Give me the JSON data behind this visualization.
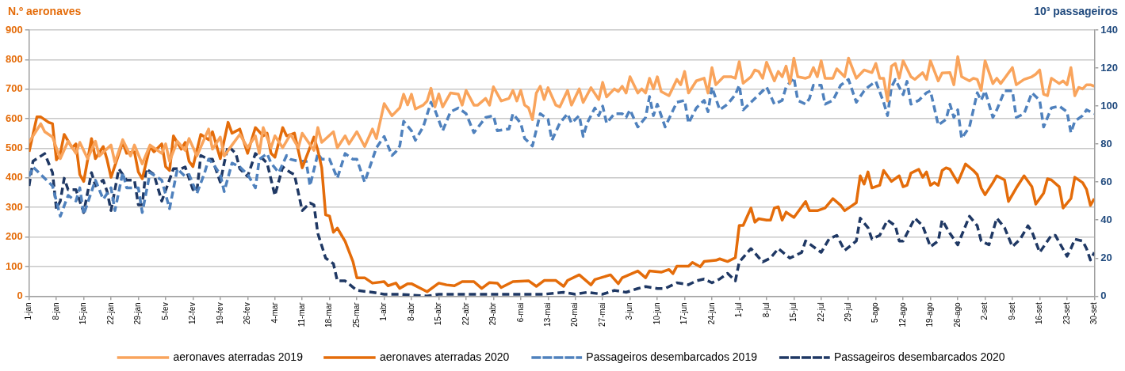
{
  "chart_data": {
    "type": "line",
    "ylabel": "N.º aeronaves",
    "y2label": "10³ passageiros",
    "xlim": [
      "--01-01",
      "--09-30"
    ],
    "xticks": [
      {
        "value": "--01-01",
        "label": "1-jan"
      },
      {
        "value": "--01-08",
        "label": "8-jan"
      },
      {
        "value": "--01-15",
        "label": "15-jan"
      },
      {
        "value": "--01-22",
        "label": "22-jan"
      },
      {
        "value": "--01-29",
        "label": "29-jan"
      },
      {
        "value": "--02-05",
        "label": "5-fev"
      },
      {
        "value": "--02-12",
        "label": "12-fev"
      },
      {
        "value": "--02-19",
        "label": "19-fev"
      },
      {
        "value": "--02-26",
        "label": "26-fev"
      },
      {
        "value": "--03-04",
        "label": "4-mar"
      },
      {
        "value": "--03-11",
        "label": "11-mar"
      },
      {
        "value": "--03-18",
        "label": "18-mar"
      },
      {
        "value": "--03-25",
        "label": "25-mar"
      },
      {
        "value": "--04-01",
        "label": "1-abr"
      },
      {
        "value": "--04-08",
        "label": "8-abr"
      },
      {
        "value": "--04-15",
        "label": "15-abr"
      },
      {
        "value": "--04-22",
        "label": "22-abr"
      },
      {
        "value": "--04-29",
        "label": "29-abr"
      },
      {
        "value": "--05-06",
        "label": "6-mai"
      },
      {
        "value": "--05-13",
        "label": "13-mai"
      },
      {
        "value": "--05-20",
        "label": "20-mai"
      },
      {
        "value": "--05-27",
        "label": "27-mai"
      },
      {
        "value": "--06-03",
        "label": "3-jun"
      },
      {
        "value": "--06-10",
        "label": "10-jun"
      },
      {
        "value": "--06-17",
        "label": "17-jun"
      },
      {
        "value": "--06-24",
        "label": "24-jun"
      },
      {
        "value": "--07-01",
        "label": "1-jul"
      },
      {
        "value": "--07-08",
        "label": "8-jul"
      },
      {
        "value": "--07-15",
        "label": "15-jul"
      },
      {
        "value": "--07-22",
        "label": "22-jul"
      },
      {
        "value": "--07-29",
        "label": "29-jul"
      },
      {
        "value": "--08-05",
        "label": "5-ago"
      },
      {
        "value": "--08-12",
        "label": "12-ago"
      },
      {
        "value": "--08-19",
        "label": "19-ago"
      },
      {
        "value": "--08-26",
        "label": "26-ago"
      },
      {
        "value": "--09-02",
        "label": "2-set"
      },
      {
        "value": "--09-09",
        "label": "9-set"
      },
      {
        "value": "--09-16",
        "label": "16-set"
      },
      {
        "value": "--09-23",
        "label": "23-set"
      },
      {
        "value": "--09-30",
        "label": "30-set"
      }
    ],
    "ylim": [
      0,
      900
    ],
    "yticks": [
      0,
      100,
      200,
      300,
      400,
      500,
      600,
      700,
      800,
      900
    ],
    "y2lim": [
      0,
      140
    ],
    "y2ticks": [
      0,
      20,
      40,
      60,
      80,
      100,
      120,
      140
    ],
    "grid": "y",
    "legend": "bottom",
    "marker": "none",
    "series": [
      {
        "name": "aeronaves aterradas 2019",
        "color": "#f9a45c",
        "line_style": "solid",
        "x": [
          "--01-01",
          "--01-04",
          "--01-05",
          "--01-07",
          "--01-09",
          "--01-11",
          "--01-13",
          "--01-14",
          "--01-16",
          "--01-18",
          "--01-19",
          "--01-22",
          "--01-23",
          "--01-25",
          "--01-27",
          "--01-28",
          "--01-30",
          "--02-01",
          "--02-04",
          "--02-05",
          "--02-06",
          "--02-08",
          "--02-10",
          "--02-11",
          "--02-13",
          "--02-16",
          "--02-17",
          "--02-19",
          "--02-20",
          "--02-22",
          "--02-24",
          "--02-26",
          "--02-28",
          "--02-29",
          "--03-01",
          "--03-03",
          "--03-04",
          "--03-06",
          "--03-08",
          "--03-10",
          "--03-11",
          "--03-14",
          "--03-15",
          "--03-16",
          "--03-19",
          "--03-20",
          "--03-22",
          "--03-23",
          "--03-25",
          "--03-27",
          "--03-29",
          "--03-30",
          "--04-01",
          "--04-03",
          "--04-05",
          "--04-06",
          "--04-07",
          "--04-08",
          "--04-09",
          "--04-11",
          "--04-12",
          "--04-13",
          "--04-14",
          "--04-15",
          "--04-16",
          "--04-18",
          "--04-20",
          "--04-21",
          "--04-22",
          "--04-24",
          "--04-25",
          "--04-27",
          "--04-28",
          "--04-29",
          "--05-01",
          "--05-03",
          "--05-04",
          "--05-05",
          "--05-06",
          "--05-07",
          "--05-08",
          "--05-09",
          "--05-10",
          "--05-11",
          "--05-12",
          "--05-13",
          "--05-15",
          "--05-16",
          "--05-18",
          "--05-19",
          "--05-21",
          "--05-22",
          "--05-24",
          "--05-26",
          "--05-27",
          "--05-28",
          "--05-30",
          "--05-31",
          "--06-01",
          "--06-02",
          "--06-03",
          "--06-05",
          "--06-06",
          "--06-07",
          "--06-08",
          "--06-09",
          "--06-10",
          "--06-11",
          "--06-13",
          "--06-14",
          "--06-15",
          "--06-16",
          "--06-17",
          "--06-18",
          "--06-20",
          "--06-22",
          "--06-23",
          "--06-24",
          "--06-25",
          "--06-27",
          "--06-29",
          "--06-30",
          "--07-01",
          "--07-02",
          "--07-04",
          "--07-05",
          "--07-06",
          "--07-07",
          "--07-08",
          "--07-10",
          "--07-11",
          "--07-12",
          "--07-13",
          "--07-14",
          "--07-15",
          "--07-16",
          "--07-18",
          "--07-19",
          "--07-20",
          "--07-21",
          "--07-22",
          "--07-23",
          "--07-25",
          "--07-26",
          "--07-28",
          "--07-29",
          "--07-31",
          "--08-02",
          "--08-04",
          "--08-05",
          "--08-06",
          "--08-07",
          "--08-08",
          "--08-09",
          "--08-10",
          "--08-11",
          "--08-12",
          "--08-14",
          "--08-15",
          "--08-17",
          "--08-18",
          "--08-19",
          "--08-21",
          "--08-22",
          "--08-24",
          "--08-25",
          "--08-26",
          "--08-27",
          "--08-29",
          "--08-30",
          "--08-31",
          "--09-01",
          "--09-02",
          "--09-04",
          "--09-05",
          "--09-06",
          "--09-07",
          "--09-09",
          "--09-10",
          "--09-12",
          "--09-14",
          "--09-15",
          "--09-16",
          "--09-17",
          "--09-18",
          "--09-19",
          "--09-21",
          "--09-22",
          "--09-23",
          "--09-24",
          "--09-25",
          "--09-26",
          "--09-27",
          "--09-28",
          "--09-29",
          "--09-30"
        ],
        "values": [
          521,
          583,
          556,
          538,
          465,
          524,
          483,
          520,
          465,
          524,
          474,
          511,
          452,
          529,
          474,
          511,
          447,
          511,
          483,
          515,
          456,
          524,
          493,
          533,
          474,
          565,
          497,
          538,
          474,
          511,
          547,
          502,
          542,
          483,
          570,
          502,
          542,
          502,
          547,
          502,
          551,
          493,
          570,
          520,
          556,
          502,
          542,
          515,
          556,
          506,
          565,
          533,
          651,
          610,
          637,
          683,
          647,
          683,
          633,
          646,
          660,
          703,
          640,
          684,
          640,
          687,
          683,
          646,
          696,
          646,
          646,
          669,
          646,
          708,
          660,
          669,
          696,
          660,
          696,
          646,
          637,
          597,
          687,
          710,
          665,
          705,
          646,
          640,
          696,
          646,
          701,
          655,
          705,
          665,
          723,
          674,
          701,
          692,
          710,
          687,
          742,
          687,
          701,
          687,
          737,
          701,
          742,
          692,
          678,
          705,
          733,
          715,
          760,
          687,
          728,
          737,
          687,
          773,
          715,
          742,
          742,
          737,
          793,
          720,
          742,
          765,
          760,
          737,
          791,
          728,
          760,
          742,
          778,
          719,
          805,
          742,
          737,
          742,
          773,
          742,
          796,
          737,
          737,
          769,
          742,
          805,
          737,
          765,
          756,
          787,
          737,
          737,
          660,
          778,
          787,
          737,
          796,
          742,
          733,
          756,
          733,
          796,
          728,
          755,
          756,
          715,
          810,
          742,
          728,
          737,
          733,
          696,
          796,
          719,
          737,
          719,
          737,
          773,
          715,
          733,
          742,
          751,
          765,
          683,
          678,
          737,
          719,
          728,
          715,
          773,
          678,
          706,
          701,
          715,
          715,
          710
        ]
      },
      {
        "name": "aeronaves aterradas 2020",
        "color": "#e46c0a",
        "line_style": "solid",
        "x": [
          "--01-01",
          "--01-03",
          "--01-04",
          "--01-06",
          "--01-07",
          "--01-08",
          "--01-09",
          "--01-10",
          "--01-12",
          "--01-13",
          "--01-14",
          "--01-15",
          "--01-17",
          "--01-18",
          "--01-20",
          "--01-21",
          "--01-22",
          "--01-25",
          "--01-26",
          "--01-28",
          "--01-29",
          "--01-30",
          "--02-01",
          "--02-02",
          "--02-04",
          "--02-05",
          "--02-06",
          "--02-07",
          "--02-09",
          "--02-10",
          "--02-11",
          "--02-12",
          "--02-14",
          "--02-16",
          "--02-17",
          "--02-19",
          "--02-21",
          "--02-22",
          "--02-24",
          "--02-26",
          "--02-28",
          "--03-01",
          "--03-02",
          "--03-03",
          "--03-04",
          "--03-06",
          "--03-07",
          "--03-09",
          "--03-11",
          "--03-14",
          "--03-15",
          "--03-16",
          "--03-17",
          "--03-18",
          "--03-19",
          "--03-20",
          "--03-22",
          "--03-24",
          "--03-25",
          "--03-27",
          "--03-29",
          "--04-01",
          "--04-02",
          "--04-04",
          "--04-05",
          "--04-07",
          "--04-08",
          "--04-12",
          "--04-15",
          "--04-17",
          "--04-19",
          "--04-21",
          "--04-24",
          "--04-26",
          "--04-28",
          "--04-30",
          "--05-01",
          "--05-04",
          "--05-08",
          "--05-10",
          "--05-12",
          "--05-15",
          "--05-17",
          "--05-18",
          "--05-21",
          "--05-24",
          "--05-25",
          "--05-29",
          "--05-31",
          "--06-01",
          "--06-05",
          "--06-07",
          "--06-08",
          "--06-11",
          "--06-13",
          "--06-14",
          "--06-15",
          "--06-18",
          "--06-19",
          "--06-21",
          "--06-22",
          "--06-25",
          "--06-26",
          "--06-28",
          "--06-30",
          "--07-01",
          "--07-02",
          "--07-04",
          "--07-05",
          "--07-06",
          "--07-08",
          "--07-09",
          "--07-10",
          "--07-11",
          "--07-12",
          "--07-13",
          "--07-15",
          "--07-16",
          "--07-18",
          "--07-19",
          "--07-21",
          "--07-23",
          "--07-25",
          "--07-27",
          "--07-28",
          "--07-30",
          "--07-31",
          "--08-01",
          "--08-02",
          "--08-03",
          "--08-04",
          "--08-06",
          "--08-07",
          "--08-09",
          "--08-11",
          "--08-12",
          "--08-13",
          "--08-14",
          "--08-16",
          "--08-17",
          "--08-18",
          "--08-19",
          "--08-20",
          "--08-21",
          "--08-22",
          "--08-23",
          "--08-24",
          "--08-26",
          "--08-28",
          "--08-30",
          "--08-31",
          "--09-01",
          "--09-02",
          "--09-04",
          "--09-05",
          "--09-07",
          "--09-08",
          "--09-10",
          "--09-12",
          "--09-14",
          "--09-15",
          "--09-17",
          "--09-18",
          "--09-19",
          "--09-21",
          "--09-22",
          "--09-24",
          "--09-25",
          "--09-27",
          "--09-28",
          "--09-29",
          "--09-30"
        ],
        "values": [
          488,
          606,
          606,
          588,
          583,
          461,
          483,
          547,
          502,
          515,
          411,
          388,
          533,
          465,
          506,
          461,
          402,
          520,
          483,
          488,
          420,
          397,
          506,
          488,
          515,
          438,
          425,
          542,
          497,
          520,
          456,
          438,
          547,
          529,
          556,
          465,
          588,
          551,
          565,
          483,
          570,
          542,
          551,
          483,
          470,
          570,
          542,
          551,
          434,
          538,
          493,
          434,
          275,
          271,
          216,
          230,
          185,
          117,
          62,
          62,
          44,
          49,
          35,
          44,
          26,
          42,
          42,
          15,
          44,
          38,
          35,
          49,
          49,
          26,
          46,
          44,
          29,
          49,
          52,
          33,
          53,
          53,
          33,
          53,
          72,
          38,
          56,
          72,
          42,
          62,
          85,
          62,
          85,
          81,
          90,
          76,
          101,
          101,
          114,
          99,
          117,
          121,
          126,
          117,
          130,
          239,
          239,
          298,
          250,
          262,
          257,
          257,
          298,
          302,
          257,
          284,
          266,
          284,
          320,
          289,
          289,
          298,
          330,
          307,
          289,
          307,
          316,
          407,
          379,
          420,
          366,
          375,
          425,
          388,
          407,
          370,
          375,
          416,
          429,
          402,
          420,
          375,
          384,
          375,
          425,
          434,
          429,
          384,
          447,
          425,
          411,
          366,
          343,
          384,
          407,
          393,
          320,
          366,
          407,
          370,
          311,
          348,
          397,
          393,
          370,
          298,
          330,
          402,
          384,
          361,
          307,
          330
        ]
      },
      {
        "name": "Passageiros desembarcados 2019",
        "color": "#4f81bd",
        "line_style": "dashed",
        "axis": "y2",
        "x": [
          "--01-01",
          "--01-02",
          "--01-04",
          "--01-07",
          "--01-09",
          "--01-11",
          "--01-13",
          "--01-14",
          "--01-15",
          "--01-18",
          "--01-20",
          "--01-22",
          "--01-23",
          "--01-25",
          "--01-26",
          "--01-29",
          "--01-30",
          "--02-01",
          "--02-04",
          "--02-06",
          "--02-08",
          "--02-10",
          "--02-11",
          "--02-13",
          "--02-15",
          "--02-16",
          "--02-17",
          "--02-19",
          "--02-20",
          "--02-22",
          "--02-24",
          "--02-26",
          "--02-28",
          "--02-29",
          "--03-02",
          "--03-03",
          "--03-05",
          "--03-07",
          "--03-08",
          "--03-10",
          "--03-12",
          "--03-13",
          "--03-15",
          "--03-16",
          "--03-18",
          "--03-20",
          "--03-22",
          "--03-24",
          "--03-25",
          "--03-27",
          "--03-29",
          "--03-30",
          "--04-01",
          "--04-03",
          "--04-04",
          "--04-05",
          "--04-06",
          "--04-08",
          "--04-09",
          "--04-11",
          "--04-13",
          "--04-14",
          "--04-16",
          "--04-18",
          "--04-20",
          "--04-22",
          "--04-24",
          "--04-27",
          "--04-29",
          "--04-30",
          "--05-03",
          "--05-04",
          "--05-06",
          "--05-07",
          "--05-09",
          "--05-11",
          "--05-13",
          "--05-14",
          "--05-16",
          "--05-18",
          "--05-19",
          "--05-21",
          "--05-22",
          "--05-23",
          "--05-25",
          "--05-26",
          "--05-27",
          "--05-28",
          "--05-30",
          "--06-01",
          "--06-02",
          "--06-03",
          "--06-05",
          "--06-07",
          "--06-08",
          "--06-09",
          "--06-10",
          "--06-12",
          "--06-15",
          "--06-17",
          "--06-18",
          "--06-20",
          "--06-22",
          "--06-23",
          "--06-24",
          "--06-26",
          "--06-28",
          "--06-30",
          "--07-01",
          "--07-02",
          "--07-04",
          "--07-07",
          "--07-08",
          "--07-10",
          "--07-12",
          "--07-13",
          "--07-15",
          "--07-16",
          "--07-18",
          "--07-19",
          "--07-20",
          "--07-22",
          "--07-23",
          "--07-25",
          "--07-27",
          "--07-29",
          "--07-31",
          "--08-02",
          "--08-03",
          "--08-05",
          "--08-07",
          "--08-08",
          "--08-09",
          "--08-10",
          "--08-12",
          "--08-13",
          "--08-14",
          "--08-16",
          "--08-18",
          "--08-19",
          "--08-21",
          "--08-23",
          "--08-24",
          "--08-25",
          "--08-26",
          "--08-27",
          "--08-29",
          "--08-31",
          "--09-01",
          "--09-02",
          "--09-04",
          "--09-05",
          "--09-07",
          "--09-09",
          "--09-10",
          "--09-12",
          "--09-14",
          "--09-16",
          "--09-17",
          "--09-19",
          "--09-21",
          "--09-23",
          "--09-24",
          "--09-25",
          "--09-27",
          "--09-28",
          "--09-30"
        ],
        "values": [
          63,
          68,
          64,
          58,
          42,
          53,
          50,
          57,
          43,
          61,
          51,
          57,
          45,
          65,
          57,
          57,
          44,
          65,
          61,
          46,
          67,
          63,
          64,
          54,
          65,
          72,
          70,
          64,
          55,
          70,
          68,
          64,
          57,
          72,
          75,
          70,
          65,
          74,
          72,
          71,
          71,
          58,
          75,
          72,
          72,
          62,
          75,
          72,
          72,
          60,
          72,
          78,
          84,
          74,
          76,
          79,
          92,
          87,
          82,
          89,
          102,
          98,
          87,
          97,
          99,
          96,
          86,
          94,
          95,
          87,
          88,
          96,
          91,
          83,
          79,
          96,
          93,
          82,
          91,
          96,
          91,
          95,
          84,
          91,
          99,
          95,
          100,
          91,
          96,
          96,
          94,
          98,
          89,
          94,
          105,
          95,
          101,
          89,
          102,
          103,
          91,
          99,
          103,
          97,
          110,
          98,
          101,
          106,
          111,
          98,
          102,
          108,
          110,
          101,
          103,
          110,
          115,
          103,
          101,
          104,
          111,
          111,
          101,
          103,
          111,
          114,
          102,
          108,
          110,
          113,
          102,
          95,
          110,
          114,
          106,
          113,
          101,
          103,
          107,
          108,
          90,
          93,
          101,
          94,
          98,
          83,
          89,
          107,
          103,
          108,
          94,
          98,
          108,
          108,
          94,
          96,
          107,
          103,
          89,
          99,
          100,
          97,
          86,
          92,
          95,
          98,
          96
        ]
      },
      {
        "name": "Passageiros desembarcados 2020",
        "color": "#1f3864",
        "line_style": "dashed",
        "axis": "y2",
        "x": [
          "--01-01",
          "--01-02",
          "--01-05",
          "--01-07",
          "--01-08",
          "--01-09",
          "--01-10",
          "--01-11",
          "--01-13",
          "--01-15",
          "--01-17",
          "--01-18",
          "--01-20",
          "--01-21",
          "--01-22",
          "--01-24",
          "--01-26",
          "--01-28",
          "--01-29",
          "--01-30",
          "--01-31",
          "--02-02",
          "--02-04",
          "--02-07",
          "--02-09",
          "--02-10",
          "--02-12",
          "--02-13",
          "--02-14",
          "--02-16",
          "--02-17",
          "--02-19",
          "--02-20",
          "--02-21",
          "--02-23",
          "--02-24",
          "--02-26",
          "--02-28",
          "--03-01",
          "--03-02",
          "--03-04",
          "--03-06",
          "--03-08",
          "--03-09",
          "--03-11",
          "--03-13",
          "--03-14",
          "--03-15",
          "--03-17",
          "--03-19",
          "--03-20",
          "--03-22",
          "--03-25",
          "--03-29",
          "--04-01",
          "--04-05",
          "--04-12",
          "--04-15",
          "--04-22",
          "--04-29",
          "--05-06",
          "--05-12",
          "--05-17",
          "--05-20",
          "--05-23",
          "--05-27",
          "--05-30",
          "--06-02",
          "--06-05",
          "--06-07",
          "--06-10",
          "--06-12",
          "--06-15",
          "--06-18",
          "--06-20",
          "--06-22",
          "--06-24",
          "--06-26",
          "--06-28",
          "--06-29",
          "--06-30",
          "--07-01",
          "--07-04",
          "--07-07",
          "--07-09",
          "--07-11",
          "--07-14",
          "--07-17",
          "--07-18",
          "--07-20",
          "--07-22",
          "--07-24",
          "--07-26",
          "--07-28",
          "--07-31",
          "--08-01",
          "--08-03",
          "--08-04",
          "--08-06",
          "--08-08",
          "--08-10",
          "--08-11",
          "--08-12",
          "--08-15",
          "--08-17",
          "--08-19",
          "--08-21",
          "--08-22",
          "--08-24",
          "--08-26",
          "--08-29",
          "--08-31",
          "--09-01",
          "--09-03",
          "--09-05",
          "--09-07",
          "--09-09",
          "--09-11",
          "--09-13",
          "--09-14",
          "--09-16",
          "--09-17",
          "--09-19",
          "--09-20",
          "--09-23",
          "--09-24",
          "--09-25",
          "--09-27",
          "--09-28",
          "--09-29",
          "--09-30"
        ],
        "values": [
          58,
          71,
          75,
          65,
          46,
          50,
          62,
          56,
          56,
          44,
          65,
          58,
          61,
          55,
          45,
          67,
          61,
          61,
          48,
          48,
          67,
          64,
          50,
          67,
          67,
          68,
          56,
          55,
          74,
          72,
          72,
          60,
          70,
          79,
          75,
          67,
          63,
          75,
          72,
          70,
          53,
          68,
          65,
          64,
          45,
          49,
          48,
          33,
          20,
          17,
          8,
          8,
          3,
          2,
          1,
          1,
          0,
          1,
          1,
          1,
          1,
          1,
          2,
          1,
          2,
          1,
          3,
          2,
          4,
          5,
          4,
          4,
          7,
          6,
          8,
          9,
          7,
          9,
          12,
          10,
          8,
          18,
          25,
          18,
          20,
          25,
          20,
          23,
          29,
          26,
          23,
          30,
          32,
          24,
          29,
          41,
          36,
          30,
          32,
          40,
          37,
          29,
          29,
          41,
          37,
          26,
          29,
          40,
          33,
          27,
          42,
          37,
          29,
          27,
          41,
          36,
          26,
          30,
          37,
          34,
          23,
          26,
          32,
          32,
          21,
          25,
          30,
          29,
          25,
          19,
          23
        ]
      }
    ]
  }
}
